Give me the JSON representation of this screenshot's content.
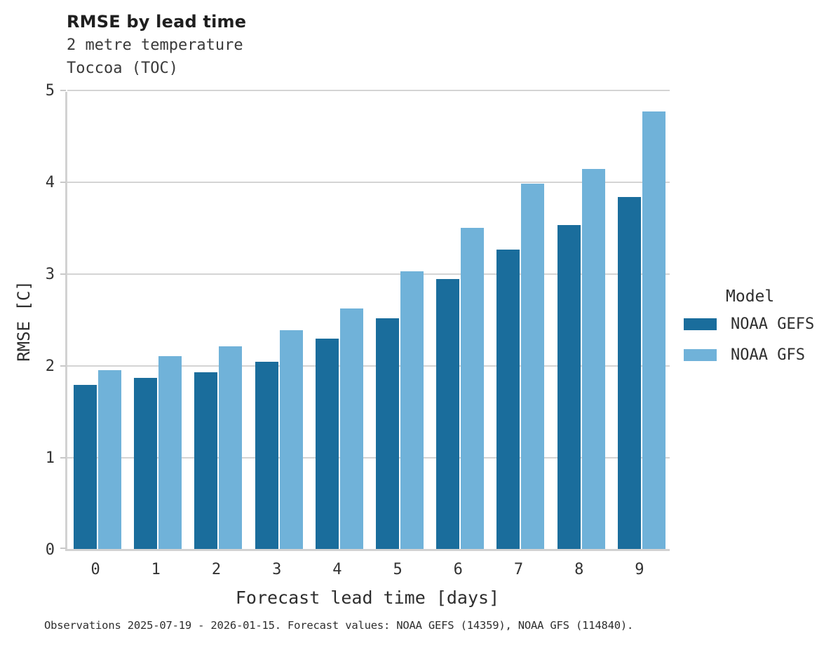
{
  "title": "RMSE by lead time",
  "subtitle_lines": [
    "2 metre temperature",
    "Toccoa (TOC)"
  ],
  "footer": "Observations 2025-07-19 - 2026-01-15. Forecast values: NOAA GEFS (14359), NOAA GFS (114840).",
  "legend": {
    "title": "Model",
    "entries": [
      {
        "label": "NOAA GEFS",
        "color": "#1a6d9c"
      },
      {
        "label": "NOAA GFS",
        "color": "#70b2d9"
      }
    ]
  },
  "colors": {
    "gefs_dark_blue": "#1a6d9c",
    "gfs_light_blue": "#70b2d9",
    "gridline_gray": "#d4d4d4",
    "text_dark": "#2e2e2e"
  },
  "chart_data": {
    "type": "bar",
    "title": "RMSE by lead time",
    "subtitle": "2 metre temperature / Toccoa (TOC)",
    "categories": [
      "0",
      "1",
      "2",
      "3",
      "4",
      "5",
      "6",
      "7",
      "8",
      "9"
    ],
    "series": [
      {
        "name": "NOAA GEFS",
        "color": "#1a6d9c",
        "values": [
          1.79,
          1.86,
          1.92,
          2.04,
          2.29,
          2.51,
          2.94,
          3.26,
          3.53,
          3.83
        ]
      },
      {
        "name": "NOAA GFS",
        "color": "#70b2d9",
        "values": [
          1.95,
          2.1,
          2.21,
          2.38,
          2.62,
          3.02,
          3.5,
          3.98,
          4.14,
          4.76
        ]
      }
    ],
    "xlabel": "Forecast lead time [days]",
    "ylabel": "RMSE [C]",
    "ylim": [
      0,
      5
    ],
    "yticks": [
      0,
      1,
      2,
      3,
      4,
      5
    ],
    "grid": "horizontal",
    "legend_position": "right"
  }
}
